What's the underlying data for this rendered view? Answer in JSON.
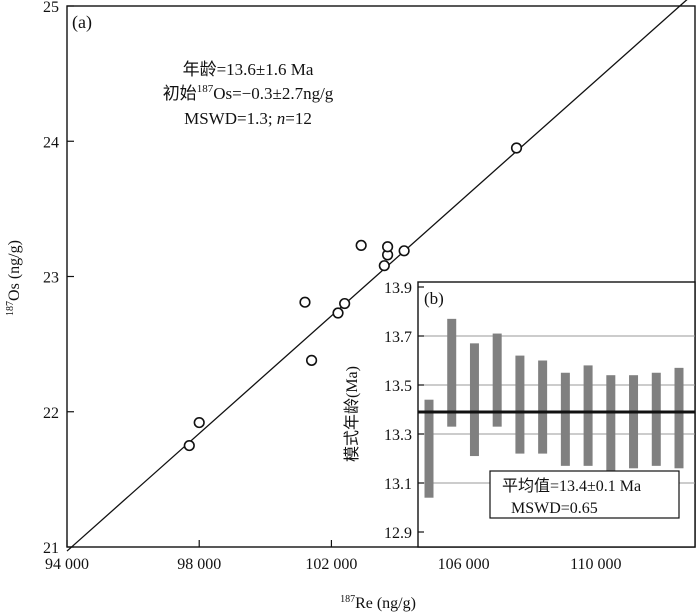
{
  "chart_data": [
    {
      "type": "scatter",
      "panel_label": "(a)",
      "xlabel_sup": "187",
      "xlabel": "Re (ng/g)",
      "ylabel_sup": "187",
      "ylabel": "Os (ng/g)",
      "xlim": [
        94000,
        113000
      ],
      "ylim": [
        21,
        25
      ],
      "xticks": [
        94000,
        98000,
        102000,
        106000,
        110000
      ],
      "xtick_labels": [
        "94 000",
        "98 000",
        "102 000",
        "106 000",
        "110 000"
      ],
      "yticks": [
        21,
        22,
        23,
        24,
        25
      ],
      "ytick_labels": [
        "21",
        "22",
        "23",
        "24",
        "25"
      ],
      "points": [
        {
          "x": 97700,
          "y": 21.75
        },
        {
          "x": 98000,
          "y": 21.92
        },
        {
          "x": 101200,
          "y": 22.81
        },
        {
          "x": 101400,
          "y": 22.38
        },
        {
          "x": 102200,
          "y": 22.73
        },
        {
          "x": 102400,
          "y": 22.8
        },
        {
          "x": 102900,
          "y": 23.23
        },
        {
          "x": 103600,
          "y": 23.08
        },
        {
          "x": 103700,
          "y": 23.16
        },
        {
          "x": 103700,
          "y": 23.22
        },
        {
          "x": 104200,
          "y": 23.19
        },
        {
          "x": 107600,
          "y": 23.95
        }
      ],
      "regression_line": {
        "x": [
          94000,
          113000
        ],
        "y": [
          20.97,
          25.1
        ]
      },
      "annotations": {
        "age": "年龄=13.6±1.6 Ma",
        "initial_prefix": "初始",
        "initial_sup": "187",
        "initial_rest": "Os=−0.3±2.7ng/g",
        "mswd_prefix": "MSWD=1.3; ",
        "mswd_n": "n",
        "mswd_suffix": "=12"
      }
    },
    {
      "type": "error_bar",
      "panel_label": "(b)",
      "ylabel": "模式年龄(Ma)",
      "ylim": [
        12.9,
        13.9
      ],
      "yticks": [
        12.9,
        13.1,
        13.3,
        13.5,
        13.7,
        13.9
      ],
      "ytick_labels": [
        "12.9",
        "13.1",
        "13.3",
        "13.5",
        "13.7",
        "13.9"
      ],
      "bars": [
        {
          "low": 13.04,
          "high": 13.44
        },
        {
          "low": 13.33,
          "high": 13.77
        },
        {
          "low": 13.21,
          "high": 13.67
        },
        {
          "low": 13.33,
          "high": 13.71
        },
        {
          "low": 13.22,
          "high": 13.62
        },
        {
          "low": 13.22,
          "high": 13.6
        },
        {
          "low": 13.17,
          "high": 13.55
        },
        {
          "low": 13.17,
          "high": 13.58
        },
        {
          "low": 13.15,
          "high": 13.54
        },
        {
          "low": 13.16,
          "high": 13.54
        },
        {
          "low": 13.17,
          "high": 13.55
        },
        {
          "low": 13.16,
          "high": 13.57
        }
      ],
      "mean": 13.39,
      "legend_line1": "平均值=13.4±0.1 Ma",
      "legend_line2": "MSWD=0.65"
    }
  ]
}
